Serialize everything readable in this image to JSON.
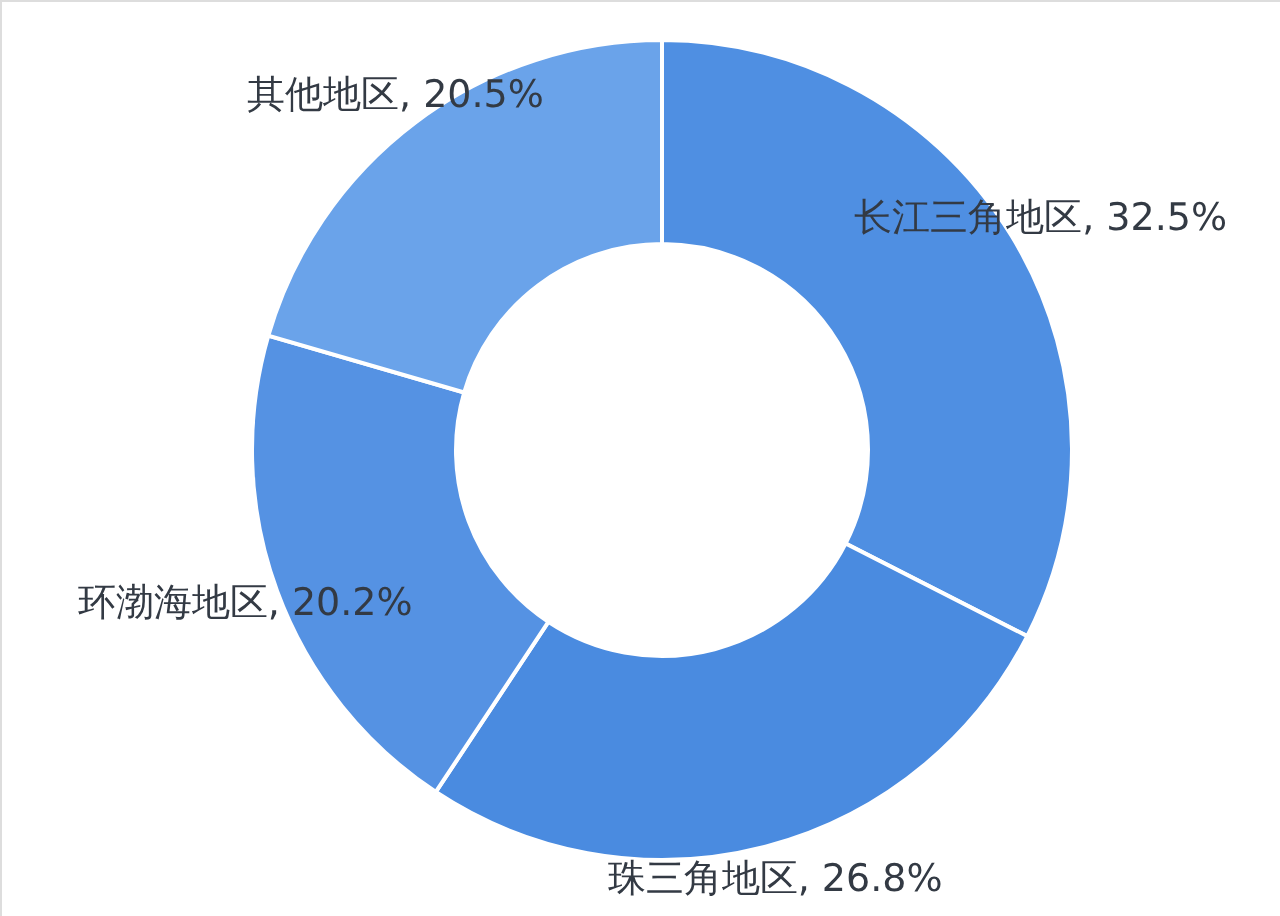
{
  "chart_data": {
    "type": "donut",
    "categories": [
      "长江三角地区",
      "珠三角地区",
      "环渤海地区",
      "其他地区"
    ],
    "values": [
      32.5,
      26.8,
      20.2,
      20.5
    ],
    "colors": [
      "#4f8fe2",
      "#4a8be0",
      "#5592e3",
      "#6aa3ea"
    ],
    "value_labels": [
      "32.5%",
      "26.8%",
      "20.2%",
      "20.5%"
    ]
  }
}
